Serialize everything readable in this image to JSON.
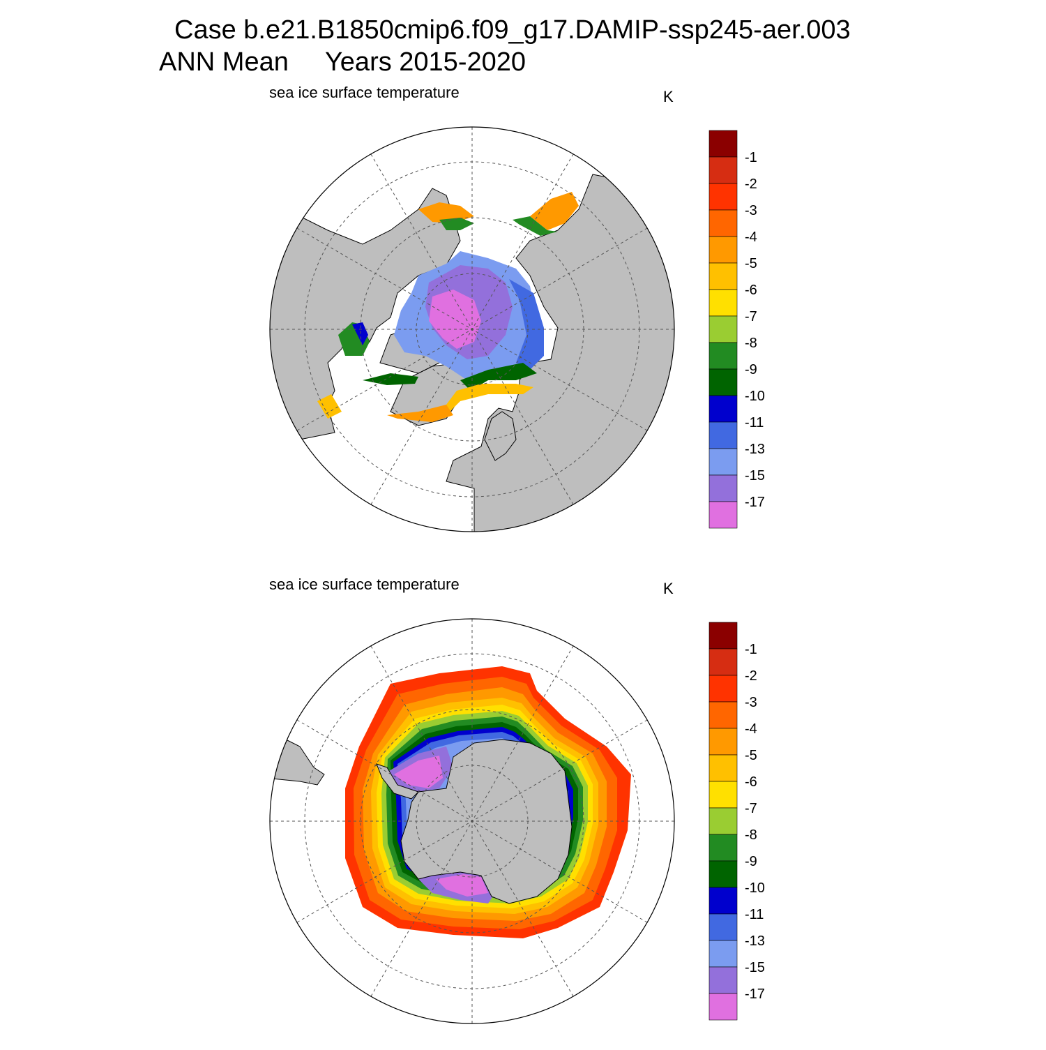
{
  "title_line1": "Case b.e21.B1850cmip6.f09_g17.DAMIP-ssp245-aer.003",
  "title_line2": "ANN Mean     Years 2015-2020",
  "panels": [
    {
      "id": "north",
      "title": "sea ice surface temperature",
      "units": "K",
      "hemisphere": "north"
    },
    {
      "id": "south",
      "title": "sea ice surface temperature",
      "units": "K",
      "hemisphere": "south"
    }
  ],
  "colorbar": {
    "labels": [
      "-1",
      "-2",
      "-3",
      "-4",
      "-5",
      "-6",
      "-7",
      "-8",
      "-9",
      "-10",
      "-11",
      "-13",
      "-15",
      "-17"
    ],
    "colors": [
      "#8b0000",
      "#d62d12",
      "#ff3300",
      "#ff6600",
      "#ff9900",
      "#ffc000",
      "#ffe000",
      "#9acd32",
      "#228b22",
      "#006400",
      "#0000cd",
      "#4169e1",
      "#7b9cf0",
      "#9370db",
      "#e070e0"
    ]
  },
  "colors": {
    "land": "#bebebe",
    "ocean_nodata": "#ffffff",
    "grid": "#555555"
  }
}
